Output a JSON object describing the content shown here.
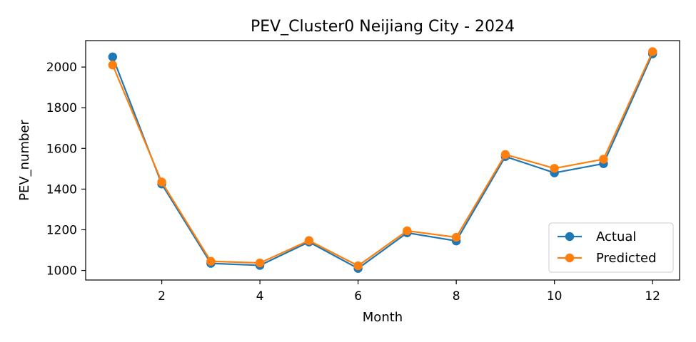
{
  "chart_data": {
    "type": "line",
    "title": "PEV_Cluster0 Neijiang City - 2024",
    "xlabel": "Month",
    "ylabel": "PEV_number",
    "xlim": [
      0.45,
      12.55
    ],
    "ylim": [
      953,
      2130
    ],
    "x_ticks": [
      2,
      4,
      6,
      8,
      10,
      12
    ],
    "y_ticks": [
      1000,
      1200,
      1400,
      1600,
      1800,
      2000
    ],
    "grid": false,
    "legend_position": "lower-right",
    "x": [
      1,
      2,
      3,
      4,
      5,
      6,
      7,
      8,
      9,
      10,
      11,
      12
    ],
    "series": [
      {
        "name": "Actual",
        "color": "#1f77b4",
        "values": [
          2050,
          1425,
          1035,
          1025,
          1140,
          1010,
          1185,
          1145,
          1560,
          1480,
          1525,
          2065
        ]
      },
      {
        "name": "Predicted",
        "color": "#ff7f0e",
        "values": [
          2010,
          1435,
          1045,
          1037,
          1147,
          1023,
          1195,
          1163,
          1570,
          1502,
          1547,
          2076
        ]
      }
    ]
  }
}
